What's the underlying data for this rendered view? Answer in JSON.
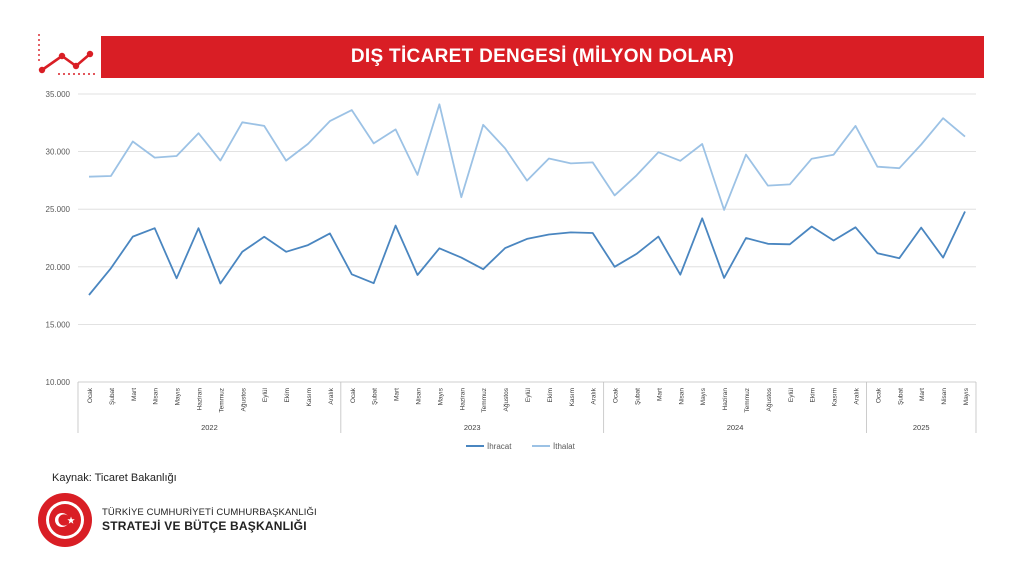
{
  "title": "DIŞ TİCARET DENGESİ (MİLYON DOLAR)",
  "source": "Kaynak: Ticaret Bakanlığı",
  "footer": {
    "line1": "TÜRKİYE CUMHURİYETİ CUMHURBAŞKANLIĞI",
    "line2": "STRATEJİ VE BÜTÇE BAŞKANLIĞI",
    "seal_text": "T.C. CUMHURBAŞKANLIĞI STRATEJİ VE BÜTÇE BAŞKANLIĞI"
  },
  "colors": {
    "brand_red": "#d91e25",
    "ihracat": "#4a86c0",
    "ithalat": "#9cc2e5"
  },
  "chart_data": {
    "type": "line",
    "title": "DIŞ TİCARET DENGESİ (MİLYON DOLAR)",
    "ylim": [
      10000,
      35000
    ],
    "yticks": [
      "10.000",
      "15.000",
      "20.000",
      "25.000",
      "30.000",
      "35.000"
    ],
    "grid": true,
    "legend": "bottom",
    "groups": [
      {
        "label": "2022",
        "months": [
          "Ocak",
          "Şubat",
          "Mart",
          "Nisan",
          "Mayıs",
          "Haziran",
          "Temmuz",
          "Ağustos",
          "Eylül",
          "Ekim",
          "Kasım",
          "Aralık"
        ]
      },
      {
        "label": "2023",
        "months": [
          "Ocak",
          "Şubat",
          "Mart",
          "Nisan",
          "Mayıs",
          "Haziran",
          "Temmuz",
          "Ağustos",
          "Eylül",
          "Ekim",
          "Kasım",
          "Aralık"
        ]
      },
      {
        "label": "2024",
        "months": [
          "Ocak",
          "Şubat",
          "Mart",
          "Nisan",
          "Mayıs",
          "Haziran",
          "Temmuz",
          "Ağustos",
          "Eylül",
          "Ekim",
          "Kasım",
          "Aralık"
        ]
      },
      {
        "label": "2025",
        "months": [
          "Ocak",
          "Şubat",
          "Mart",
          "Nisan",
          "Mayıs"
        ]
      }
    ],
    "series": [
      {
        "name": "İhracat",
        "color": "#4a86c0",
        "values": [
          17550,
          19870,
          22620,
          23350,
          19000,
          23350,
          18550,
          21300,
          22600,
          21300,
          21880,
          22900,
          19350,
          18580,
          23580,
          19290,
          21610,
          20800,
          19790,
          21620,
          22420,
          22800,
          22990,
          22930,
          20000,
          21120,
          22620,
          19310,
          24210,
          19040,
          22500,
          22000,
          21950,
          23500,
          22280,
          23430,
          21180,
          20750,
          23400,
          20800,
          24800
        ]
      },
      {
        "name": "İthalat",
        "color": "#9cc2e5",
        "values": [
          27820,
          27880,
          30880,
          29480,
          29620,
          31600,
          29220,
          32540,
          32230,
          29220,
          30670,
          32650,
          33600,
          30710,
          31930,
          27980,
          34110,
          26040,
          32330,
          30280,
          27480,
          29400,
          28980,
          29060,
          26200,
          27930,
          29950,
          29200,
          30660,
          24940,
          29740,
          27050,
          27150,
          29380,
          29730,
          32230,
          28690,
          28560,
          30620,
          32900,
          31300
        ]
      }
    ]
  }
}
